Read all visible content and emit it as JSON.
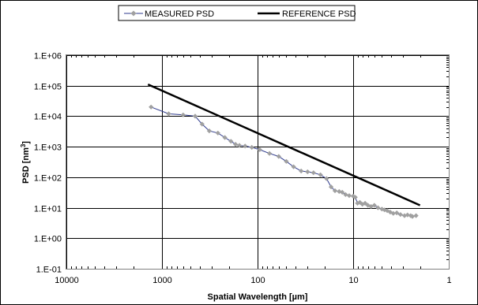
{
  "chart_data": {
    "type": "line",
    "xlabel": "Spatial Wavelength [µm]",
    "ylabel_main": "PSD [nm",
    "ylabel_sup": "3",
    "ylabel_end": "]",
    "x_scale": "log",
    "y_scale": "log",
    "x_reversed": true,
    "xlim": [
      10000,
      1
    ],
    "ylim": [
      0.1,
      1000000
    ],
    "x_ticks": [
      10000,
      1000,
      100,
      10,
      1
    ],
    "x_tick_labels": [
      "10000",
      "1000",
      "100",
      "10",
      "1"
    ],
    "y_ticks": [
      0.1,
      1,
      10,
      100,
      1000,
      10000,
      100000,
      1000000
    ],
    "y_tick_labels": [
      "1.E-01",
      "1.E+00",
      "1.E+01",
      "1.E+02",
      "1.E+03",
      "1.E+04",
      "1.E+05",
      "1.E+06"
    ],
    "grid": "major",
    "legend_position": "top",
    "colors": {
      "measured_line": "#2e3a8c",
      "measured_marker": "#a0a0a0",
      "reference_line": "#000000",
      "plot_border": "#808080"
    },
    "series": [
      {
        "name": "MEASURED PSD",
        "style": "line-marker",
        "points": [
          [
            1300,
            20000
          ],
          [
            850,
            12000
          ],
          [
            600,
            11000
          ],
          [
            450,
            10000
          ],
          [
            380,
            5500
          ],
          [
            320,
            3300
          ],
          [
            260,
            2800
          ],
          [
            220,
            2000
          ],
          [
            190,
            1500
          ],
          [
            170,
            1200
          ],
          [
            155,
            1100
          ],
          [
            135,
            1050
          ],
          [
            115,
            950
          ],
          [
            95,
            800
          ],
          [
            75,
            600
          ],
          [
            60,
            480
          ],
          [
            50,
            330
          ],
          [
            42,
            220
          ],
          [
            35,
            160
          ],
          [
            30,
            150
          ],
          [
            26,
            140
          ],
          [
            22,
            120
          ],
          [
            19,
            90
          ],
          [
            17,
            48
          ],
          [
            15.5,
            36
          ],
          [
            14,
            34
          ],
          [
            13,
            32
          ],
          [
            12,
            27
          ],
          [
            11,
            25
          ],
          [
            10,
            24
          ],
          [
            9.5,
            22
          ],
          [
            9,
            14
          ],
          [
            8.5,
            15
          ],
          [
            8,
            13
          ],
          [
            7.5,
            14
          ],
          [
            7,
            12
          ],
          [
            6.5,
            11
          ],
          [
            6,
            12
          ],
          [
            5.5,
            10
          ],
          [
            5,
            9
          ],
          [
            4.7,
            8.5
          ],
          [
            4.4,
            8
          ],
          [
            4.1,
            7.2
          ],
          [
            3.8,
            6.5
          ],
          [
            3.5,
            6.8
          ],
          [
            3.2,
            6
          ],
          [
            2.9,
            5.5
          ],
          [
            2.7,
            5.8
          ],
          [
            2.5,
            5.5
          ],
          [
            2.4,
            5.2
          ],
          [
            2.2,
            5.5
          ]
        ]
      },
      {
        "name": "REFERENCE PSD",
        "style": "line",
        "points": [
          [
            1400,
            110000
          ],
          [
            2,
            12
          ]
        ]
      }
    ]
  }
}
